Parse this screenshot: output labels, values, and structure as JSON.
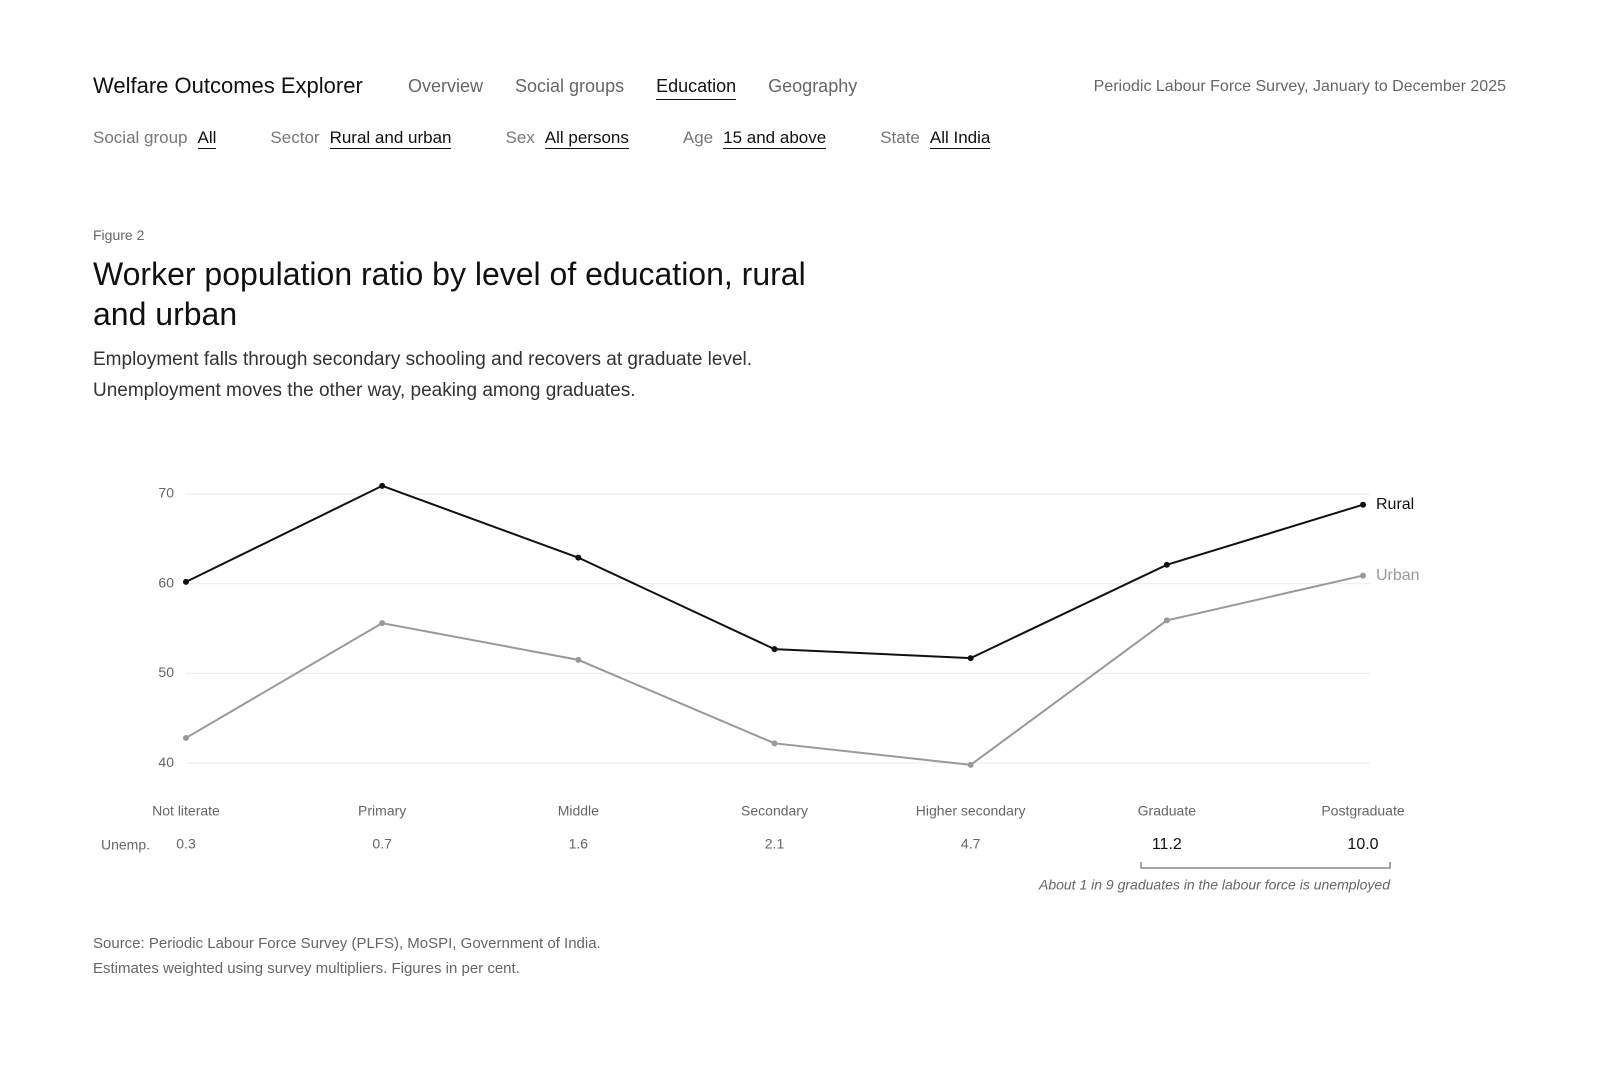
{
  "header": {
    "app_title": "Welfare Outcomes Explorer",
    "nav": [
      "Overview",
      "Social groups",
      "Education",
      "Geography"
    ],
    "active_nav": "Education",
    "survey": "Periodic Labour Force Survey, January to December 2025"
  },
  "filters": [
    {
      "label": "Social group",
      "value": "All"
    },
    {
      "label": "Sector",
      "value": "Rural and urban"
    },
    {
      "label": "Sex",
      "value": "All persons"
    },
    {
      "label": "Age",
      "value": "15 and above"
    },
    {
      "label": "State",
      "value": "All India"
    }
  ],
  "figure": {
    "label": "Figure 2",
    "title": "Worker population ratio by level of education, rural and urban",
    "subtitle": "Employment falls through secondary schooling and recovers at graduate level. Unemployment moves the other way, peaking among graduates."
  },
  "chart_data": {
    "type": "line",
    "categories": [
      "Not literate",
      "Primary",
      "Middle",
      "Secondary",
      "Higher secondary",
      "Graduate",
      "Postgraduate"
    ],
    "series": [
      {
        "name": "Rural",
        "color": "#111111",
        "values": [
          60.2,
          70.9,
          62.9,
          52.7,
          51.7,
          62.1,
          68.8
        ]
      },
      {
        "name": "Urban",
        "color": "#999999",
        "values": [
          42.8,
          55.6,
          51.5,
          42.2,
          39.8,
          55.9,
          60.9
        ]
      }
    ],
    "ylim": [
      38,
      72
    ],
    "yticks": [
      40,
      50,
      60,
      70
    ],
    "grid": true,
    "unemployment": {
      "label": "Unemp.",
      "values": [
        0.3,
        0.7,
        1.6,
        2.1,
        4.7,
        11.2,
        10.0
      ],
      "value_labels": [
        "0.3",
        "0.7",
        "1.6",
        "2.1",
        "4.7",
        "11.2",
        "10.0"
      ]
    },
    "annotation": "About 1 in 9 graduates in the labour force is unemployed"
  },
  "source": [
    "Source: Periodic Labour Force Survey (PLFS), MoSPI, Government of India.",
    "Estimates weighted using survey multipliers. Figures in per cent."
  ]
}
